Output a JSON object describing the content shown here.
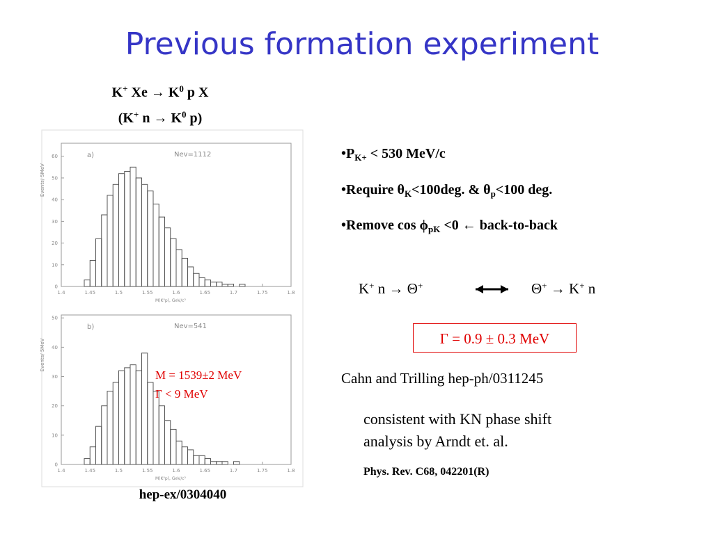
{
  "title": "Previous formation experiment",
  "reaction": [
    [
      {
        "t": "K"
      },
      {
        "sup": "+"
      },
      {
        "t": " Xe → K"
      },
      {
        "sup": "0"
      },
      {
        "t": " p X"
      }
    ],
    [
      {
        "t": "(K"
      },
      {
        "sup": "+"
      },
      {
        "t": " n → K"
      },
      {
        "sup": "0"
      },
      {
        "t": " p)"
      }
    ]
  ],
  "histograms": [
    {
      "type": "histogram",
      "label": "a)",
      "annotation": "Nev=1112",
      "xlabel": "M(K⁰p), GeV/c²",
      "ylabel": "Events/ 5MeV",
      "bins": [
        1.44,
        1.45,
        1.46,
        1.47,
        1.48,
        1.49,
        1.5,
        1.51,
        1.52,
        1.53,
        1.54,
        1.55,
        1.56,
        1.57,
        1.58,
        1.59,
        1.6,
        1.61,
        1.62,
        1.63,
        1.64,
        1.65,
        1.66,
        1.67,
        1.68,
        1.69,
        1.7,
        1.71,
        1.72
      ],
      "values": [
        3,
        12,
        22,
        33,
        42,
        47,
        52,
        53,
        55,
        50,
        47,
        44,
        38,
        32,
        27,
        22,
        17,
        13,
        9,
        6,
        4,
        3,
        2,
        2,
        1,
        1,
        0,
        1
      ],
      "xlim": [
        1.4,
        1.8
      ],
      "ylim": [
        0,
        66
      ],
      "xticks": [
        1.4,
        1.45,
        1.5,
        1.55,
        1.6,
        1.65,
        1.7,
        1.75,
        1.8
      ],
      "yticks": [
        0,
        10,
        20,
        30,
        40,
        50,
        60
      ]
    },
    {
      "type": "histogram",
      "label": "b)",
      "annotation": "Nev=541",
      "xlabel": "M(K⁰p), GeV/c²",
      "ylabel": "Events/ 5MeV",
      "bins": [
        1.44,
        1.45,
        1.46,
        1.47,
        1.48,
        1.49,
        1.5,
        1.51,
        1.52,
        1.53,
        1.54,
        1.55,
        1.56,
        1.57,
        1.58,
        1.59,
        1.6,
        1.61,
        1.62,
        1.63,
        1.64,
        1.65,
        1.66,
        1.67,
        1.68,
        1.69,
        1.7,
        1.71,
        1.72
      ],
      "values": [
        2,
        6,
        13,
        20,
        25,
        28,
        32,
        33,
        34,
        32,
        38,
        28,
        25,
        20,
        15,
        12,
        8,
        6,
        5,
        3,
        3,
        2,
        1,
        1,
        1,
        0,
        1,
        0
      ],
      "xlim": [
        1.4,
        1.8
      ],
      "ylim": [
        0,
        51
      ],
      "xticks": [
        1.4,
        1.45,
        1.5,
        1.55,
        1.6,
        1.65,
        1.7,
        1.75,
        1.8
      ],
      "yticks": [
        0,
        10,
        20,
        30,
        40,
        50
      ]
    }
  ],
  "mass_note": [
    "M = 1539±2 MeV",
    "Γ < 9 MeV"
  ],
  "reference": "hep-ex/0304040",
  "bullets": [
    [
      {
        "t": "•P"
      },
      {
        "sub": "K+"
      },
      {
        "t": " < 530 MeV/c"
      }
    ],
    [
      {
        "t": "•Require θ"
      },
      {
        "sub": "K"
      },
      {
        "t": "<100deg.  & θ"
      },
      {
        "sub": "p"
      },
      {
        "t": "<100 deg."
      }
    ],
    [
      {
        "t": "•Remove cos ϕ"
      },
      {
        "sub": "pK"
      },
      {
        "t": " <0 ← back-to-back"
      }
    ]
  ],
  "theta_reaction": {
    "left": [
      {
        "t": "K"
      },
      {
        "sup": "+"
      },
      {
        "t": " n → Θ"
      },
      {
        "sup": "+"
      }
    ],
    "right": [
      {
        "t": "Θ"
      },
      {
        "sup": "+"
      },
      {
        "t": " → K"
      },
      {
        "sup": "+"
      },
      {
        "t": " n"
      }
    ]
  },
  "width_box": "Γ = 0.9 ± 0.3 MeV",
  "citation": "Cahn and Trilling hep-ph/0311245",
  "consistency": [
    "consistent with KN phase shift",
    "analysis by Arndt et. al."
  ],
  "journal": "Phys. Rev. C68, 042201(R)"
}
